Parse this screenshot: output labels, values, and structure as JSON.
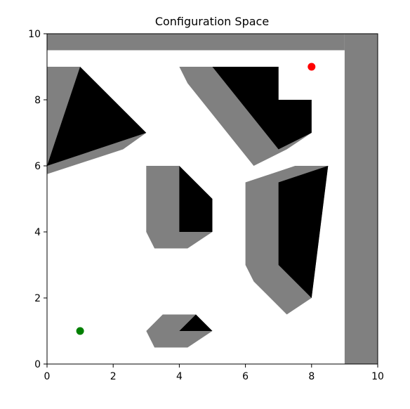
{
  "chart_data": {
    "type": "scatter",
    "title": "Configuration Space",
    "xlabel": "",
    "ylabel": "",
    "xlim": [
      0,
      10
    ],
    "ylim": [
      0,
      10
    ],
    "xticks": [
      0,
      2,
      4,
      6,
      8,
      10
    ],
    "yticks": [
      0,
      2,
      4,
      6,
      8,
      10
    ],
    "grid": false,
    "colors": {
      "c_space_obstacle": "#808080",
      "obstacle": "#000000",
      "free_space": "#ffffff",
      "start_point": "#008000",
      "goal_point": "#ff0000"
    },
    "c_space_regions": [
      {
        "name": "boundary-top",
        "points": [
          [
            0,
            9.5
          ],
          [
            9,
            9.5
          ],
          [
            9,
            10
          ],
          [
            0,
            10
          ]
        ]
      },
      {
        "name": "boundary-right",
        "points": [
          [
            9,
            0
          ],
          [
            10,
            0
          ],
          [
            10,
            10
          ],
          [
            9,
            10
          ]
        ]
      },
      {
        "name": "triangle-top-left",
        "points": [
          [
            0,
            5.75
          ],
          [
            0,
            9
          ],
          [
            1,
            9
          ],
          [
            3,
            7
          ],
          [
            2.3,
            6.5
          ]
        ]
      },
      {
        "name": "polygon-top-center",
        "points": [
          [
            4,
            9
          ],
          [
            5,
            9
          ],
          [
            7,
            9
          ],
          [
            7,
            8
          ],
          [
            8,
            8
          ],
          [
            8,
            7
          ],
          [
            7.25,
            6.5
          ],
          [
            6.25,
            6
          ],
          [
            4.25,
            8.5
          ]
        ]
      },
      {
        "name": "pentagon-center",
        "points": [
          [
            3,
            6
          ],
          [
            4,
            6
          ],
          [
            5,
            5
          ],
          [
            5,
            4
          ],
          [
            4.25,
            3.5
          ],
          [
            3.25,
            3.5
          ],
          [
            3,
            4
          ]
        ]
      },
      {
        "name": "quad-right",
        "points": [
          [
            6,
            5.5
          ],
          [
            7.5,
            6
          ],
          [
            8.5,
            6
          ],
          [
            8,
            2
          ],
          [
            7.25,
            1.5
          ],
          [
            6.25,
            2.5
          ],
          [
            6,
            3
          ]
        ]
      },
      {
        "name": "small-bottom",
        "points": [
          [
            3.5,
            1.5
          ],
          [
            4.5,
            1.5
          ],
          [
            5,
            1
          ],
          [
            4.25,
            0.5
          ],
          [
            3.25,
            0.5
          ],
          [
            3,
            1
          ]
        ]
      }
    ],
    "obstacles": [
      {
        "name": "triangle-top-left",
        "points": [
          [
            0,
            6
          ],
          [
            1,
            9
          ],
          [
            3,
            7
          ]
        ]
      },
      {
        "name": "polygon-top-center",
        "points": [
          [
            5,
            9
          ],
          [
            7,
            9
          ],
          [
            7,
            8
          ],
          [
            8,
            8
          ],
          [
            8,
            7
          ],
          [
            7,
            6.5
          ]
        ]
      },
      {
        "name": "quad-center",
        "points": [
          [
            4,
            6
          ],
          [
            5,
            5
          ],
          [
            5,
            4
          ],
          [
            4,
            4
          ]
        ]
      },
      {
        "name": "quad-right",
        "points": [
          [
            7,
            5.5
          ],
          [
            8.5,
            6
          ],
          [
            8,
            2
          ],
          [
            7,
            3
          ]
        ]
      },
      {
        "name": "triangle-bottom",
        "points": [
          [
            4,
            1
          ],
          [
            5,
            1
          ],
          [
            4.5,
            1.5
          ]
        ]
      }
    ],
    "points": [
      {
        "name": "start",
        "x": 1,
        "y": 1,
        "color": "#008000"
      },
      {
        "name": "goal",
        "x": 8,
        "y": 9,
        "color": "#ff0000"
      }
    ]
  }
}
